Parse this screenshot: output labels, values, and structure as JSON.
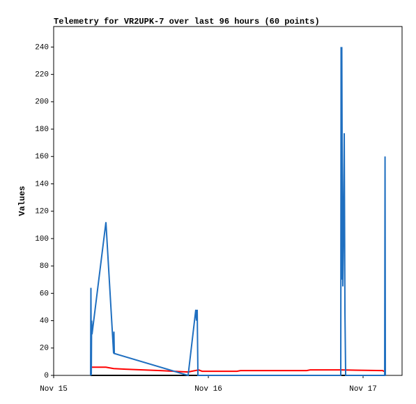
{
  "chart_data": {
    "type": "line",
    "title": "Telemetry for VR2UPK-7 over last 96 hours (60 points)",
    "y_label": "Values",
    "xlim": [
      0,
      54.05
    ],
    "xticks": [
      {
        "value": 0,
        "label": "Nov 15"
      },
      {
        "value": 24,
        "label": "Nov 16"
      },
      {
        "value": 48,
        "label": "Nov 17"
      }
    ],
    "ylim": [
      0,
      255
    ],
    "yticks": [
      0,
      20,
      40,
      60,
      80,
      100,
      120,
      140,
      160,
      180,
      200,
      220,
      240
    ],
    "series": [
      {
        "color": "#000000",
        "x": [
          5.73,
          51.46
        ],
        "values": [
          0,
          0
        ]
      },
      {
        "color": "#ff0000",
        "x": [
          5.95,
          8.11,
          9.3,
          11.14,
          16.54,
          20.86,
          22.49,
          23.03,
          28.44,
          28.98,
          39.25,
          39.79,
          44.59,
          51.03,
          51.46
        ],
        "values": [
          6,
          6,
          5,
          4.5,
          3.5,
          2.5,
          4,
          3,
          3,
          3.5,
          3.5,
          4,
          4,
          3.5,
          2.5
        ]
      },
      {
        "color": "#1f6fc0",
        "x": [
          5.73,
          5.78,
          5.84,
          5.89,
          5.95,
          8.11,
          9.3,
          9.35,
          9.41,
          20.86,
          22.05,
          22.16,
          22.27,
          22.38,
          44.54,
          44.59,
          44.65,
          44.7,
          44.76,
          44.86,
          44.97,
          45.08,
          45.19,
          45.3,
          51.35,
          51.41,
          51.46
        ],
        "values": [
          0,
          64,
          0,
          40,
          30,
          112,
          16,
          32,
          16,
          0,
          48,
          40,
          48,
          0,
          0,
          240,
          70,
          240,
          155,
          65,
          110,
          177,
          45,
          0,
          0,
          160,
          0
        ]
      }
    ]
  }
}
